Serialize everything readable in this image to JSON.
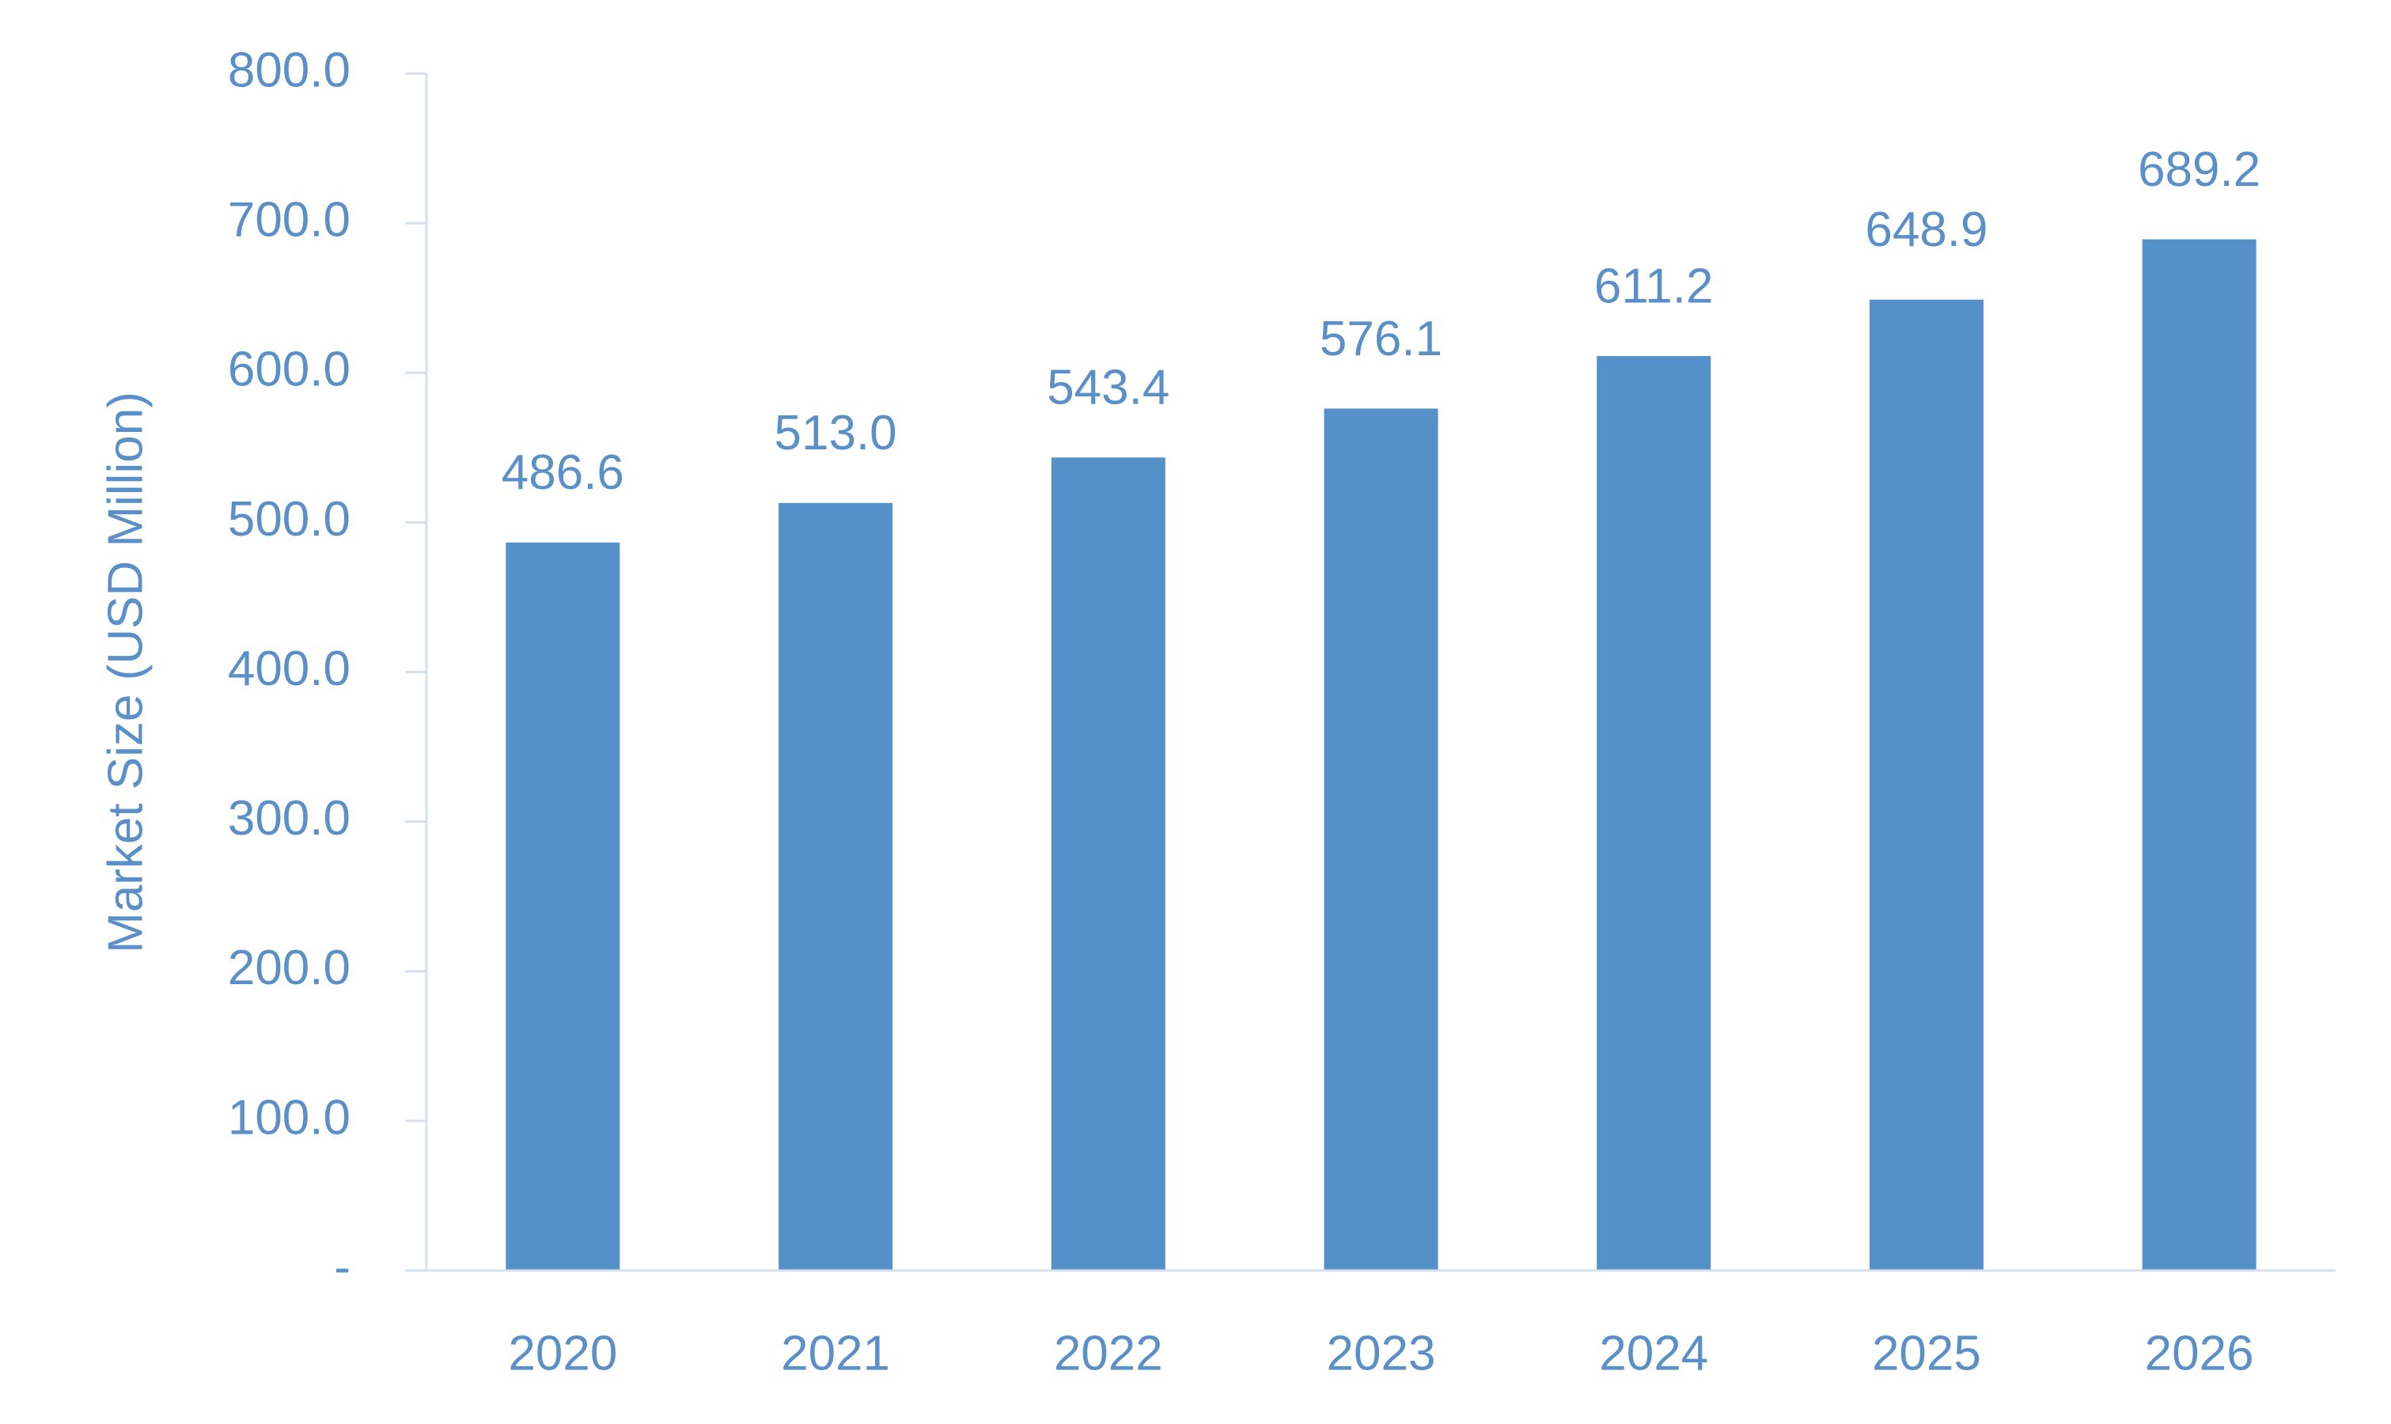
{
  "chart_data": {
    "type": "bar",
    "ylabel": "Market Size (USD Million)",
    "categories": [
      "2020",
      "2021",
      "2022",
      "2023",
      "2024",
      "2025",
      "2026"
    ],
    "values": [
      486.6,
      513.0,
      543.4,
      576.1,
      611.2,
      648.9,
      689.2
    ],
    "value_labels": [
      "486.6",
      "513.0",
      "543.4",
      "576.1",
      "611.2",
      "648.9",
      "689.2"
    ],
    "color": "#5590c8",
    "ylim": [
      0,
      800
    ],
    "yticks": [
      {
        "value": 0,
        "label": "-"
      },
      {
        "value": 100,
        "label": "100.0"
      },
      {
        "value": 200,
        "label": "200.0"
      },
      {
        "value": 300,
        "label": "300.0"
      },
      {
        "value": 400,
        "label": "400.0"
      },
      {
        "value": 500,
        "label": "500.0"
      },
      {
        "value": 600,
        "label": "600.0"
      },
      {
        "value": 700,
        "label": "700.0"
      },
      {
        "value": 800,
        "label": "800.0"
      }
    ],
    "grid": false
  }
}
